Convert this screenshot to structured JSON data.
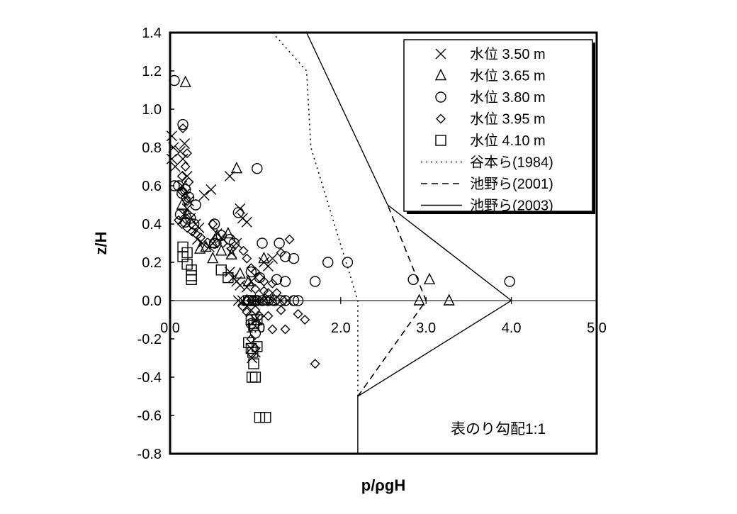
{
  "chart_data": {
    "type": "scatter",
    "title": "",
    "xlabel": "p/ρgH",
    "ylabel": "z/H",
    "xlim": [
      0,
      5
    ],
    "ylim": [
      -0.8,
      1.4
    ],
    "x_ticks": [
      "0.0",
      "1.0",
      "2.0",
      "3.0",
      "4.0",
      "5.0"
    ],
    "y_ticks": [
      "1.4",
      "1.2",
      "1.0",
      "0.8",
      "0.6",
      "0.4",
      "0.2",
      "0.0",
      "-0.2",
      "-0.4",
      "-0.6",
      "-0.8"
    ],
    "grid": false,
    "legend_position": "top-right",
    "annotation": "表のり勾配1:1",
    "series": [
      {
        "name": "水位 3.50 m",
        "marker": "x",
        "points": [
          [
            0.02,
            0.86
          ],
          [
            0.04,
            0.8
          ],
          [
            0.02,
            0.74
          ],
          [
            0.06,
            0.7
          ],
          [
            0.12,
            0.78
          ],
          [
            0.17,
            0.82
          ],
          [
            0.15,
            0.74
          ],
          [
            0.2,
            0.65
          ],
          [
            0.14,
            0.6
          ],
          [
            0.18,
            0.56
          ],
          [
            0.22,
            0.52
          ],
          [
            0.2,
            0.48
          ],
          [
            0.16,
            0.45
          ],
          [
            0.24,
            0.43
          ],
          [
            0.3,
            0.4
          ],
          [
            0.34,
            0.38
          ],
          [
            0.4,
            0.55
          ],
          [
            0.48,
            0.58
          ],
          [
            0.32,
            0.32
          ],
          [
            0.38,
            0.3
          ],
          [
            0.46,
            0.28
          ],
          [
            0.5,
            0.3
          ],
          [
            0.55,
            0.35
          ],
          [
            0.6,
            0.33
          ],
          [
            0.7,
            0.65
          ],
          [
            0.82,
            0.48
          ],
          [
            0.85,
            0.43
          ],
          [
            0.9,
            0.41
          ],
          [
            0.78,
            0.3
          ],
          [
            0.72,
            0.25
          ],
          [
            0.7,
            0.15
          ],
          [
            0.74,
            0.12
          ],
          [
            0.78,
            0.1
          ],
          [
            0.82,
            0.08
          ],
          [
            0.9,
            0.07
          ],
          [
            0.95,
            0.1
          ],
          [
            1.1,
            0.2
          ],
          [
            1.15,
            0.18
          ],
          [
            1.2,
            0.22
          ],
          [
            0.8,
            0.0
          ],
          [
            0.85,
            0.0
          ],
          [
            0.95,
            0.0
          ],
          [
            1.05,
            0.0
          ],
          [
            1.2,
            0.0
          ],
          [
            1.3,
            0.0
          ],
          [
            1.38,
            0.0
          ],
          [
            0.95,
            -0.05
          ],
          [
            1.0,
            -0.1
          ],
          [
            0.95,
            -0.25
          ],
          [
            1.0,
            -0.27
          ],
          [
            0.96,
            -0.3
          ]
        ]
      },
      {
        "name": "水位 3.65 m",
        "marker": "triangle",
        "points": [
          [
            0.18,
            1.14
          ],
          [
            0.78,
            0.69
          ],
          [
            0.68,
            0.35
          ],
          [
            0.55,
            0.34
          ],
          [
            0.5,
            0.3
          ],
          [
            0.42,
            0.28
          ],
          [
            0.35,
            0.27
          ],
          [
            0.6,
            0.26
          ],
          [
            0.72,
            0.24
          ],
          [
            0.5,
            0.22
          ],
          [
            0.82,
            0.14
          ],
          [
            0.92,
            0.1
          ],
          [
            0.14,
            0.5
          ],
          [
            0.2,
            0.45
          ],
          [
            1.1,
            0.22
          ],
          [
            0.9,
            0.0
          ],
          [
            1.0,
            0.0
          ],
          [
            1.1,
            0.0
          ],
          [
            1.2,
            0.0
          ],
          [
            2.92,
            0.0
          ],
          [
            3.27,
            0.0
          ],
          [
            3.04,
            0.11
          ]
        ]
      },
      {
        "name": "水位 3.80 m",
        "marker": "circle",
        "points": [
          [
            0.05,
            1.15
          ],
          [
            0.15,
            0.92
          ],
          [
            0.1,
            0.6
          ],
          [
            0.05,
            0.6
          ],
          [
            0.14,
            0.56
          ],
          [
            0.18,
            0.58
          ],
          [
            0.22,
            0.54
          ],
          [
            0.3,
            0.5
          ],
          [
            0.12,
            0.45
          ],
          [
            0.24,
            0.43
          ],
          [
            0.18,
            0.41
          ],
          [
            0.28,
            0.4
          ],
          [
            0.52,
            0.4
          ],
          [
            0.6,
            0.34
          ],
          [
            0.7,
            0.32
          ],
          [
            0.75,
            0.3
          ],
          [
            0.52,
            0.3
          ],
          [
            0.8,
            0.46
          ],
          [
            1.02,
            0.69
          ],
          [
            1.08,
            0.3
          ],
          [
            1.28,
            0.3
          ],
          [
            1.35,
            0.23
          ],
          [
            1.45,
            0.22
          ],
          [
            1.85,
            0.2
          ],
          [
            2.08,
            0.2
          ],
          [
            0.95,
            0.15
          ],
          [
            1.05,
            0.12
          ],
          [
            1.25,
            0.11
          ],
          [
            1.35,
            0.1
          ],
          [
            1.7,
            0.1
          ],
          [
            2.85,
            0.11
          ],
          [
            3.98,
            0.1
          ],
          [
            0.92,
            0.0
          ],
          [
            1.0,
            0.0
          ],
          [
            1.08,
            0.0
          ],
          [
            1.15,
            0.0
          ],
          [
            1.22,
            0.0
          ],
          [
            1.3,
            0.0
          ],
          [
            1.35,
            0.0
          ],
          [
            1.45,
            0.0
          ],
          [
            1.5,
            0.0
          ],
          [
            0.95,
            -0.12
          ],
          [
            1.0,
            -0.17
          ]
        ]
      },
      {
        "name": "水位 3.95 m",
        "marker": "diamond",
        "points": [
          [
            0.15,
            0.9
          ],
          [
            0.2,
            0.77
          ],
          [
            0.18,
            0.7
          ],
          [
            0.14,
            0.65
          ],
          [
            0.22,
            0.62
          ],
          [
            0.14,
            0.57
          ],
          [
            0.2,
            0.52
          ],
          [
            0.1,
            0.42
          ],
          [
            0.14,
            0.4
          ],
          [
            0.2,
            0.38
          ],
          [
            0.26,
            0.36
          ],
          [
            0.3,
            0.35
          ],
          [
            0.36,
            0.33
          ],
          [
            0.5,
            0.4
          ],
          [
            0.55,
            0.3
          ],
          [
            0.62,
            0.3
          ],
          [
            0.72,
            0.27
          ],
          [
            0.86,
            0.26
          ],
          [
            0.9,
            0.22
          ],
          [
            0.95,
            0.17
          ],
          [
            1.0,
            0.15
          ],
          [
            1.05,
            0.12
          ],
          [
            1.1,
            0.1
          ],
          [
            1.2,
            0.09
          ],
          [
            1.0,
            0.06
          ],
          [
            1.1,
            0.05
          ],
          [
            1.15,
            0.04
          ],
          [
            1.25,
            0.04
          ],
          [
            1.4,
            0.32
          ],
          [
            1.3,
            0.25
          ],
          [
            0.9,
            0.0
          ],
          [
            0.95,
            0.0
          ],
          [
            1.0,
            0.0
          ],
          [
            1.05,
            0.0
          ],
          [
            1.15,
            0.0
          ],
          [
            0.85,
            -0.03
          ],
          [
            0.9,
            -0.06
          ],
          [
            1.0,
            -0.05
          ],
          [
            1.05,
            -0.08
          ],
          [
            1.15,
            -0.08
          ],
          [
            1.3,
            -0.05
          ],
          [
            1.5,
            -0.07
          ],
          [
            1.58,
            -0.1
          ],
          [
            1.02,
            -0.12
          ],
          [
            1.2,
            -0.15
          ],
          [
            1.35,
            -0.15
          ],
          [
            0.95,
            -0.2
          ],
          [
            1.0,
            -0.25
          ],
          [
            1.7,
            -0.33
          ]
        ]
      },
      {
        "name": "水位 4.10 m",
        "marker": "square",
        "points": [
          [
            0.15,
            0.28
          ],
          [
            0.2,
            0.25
          ],
          [
            0.15,
            0.23
          ],
          [
            0.2,
            0.19
          ],
          [
            0.25,
            0.16
          ],
          [
            0.25,
            0.13
          ],
          [
            0.25,
            0.11
          ],
          [
            0.6,
            0.16
          ],
          [
            0.68,
            0.12
          ],
          [
            0.92,
            0.0
          ],
          [
            0.98,
            0.0
          ],
          [
            0.95,
            -0.1
          ],
          [
            0.98,
            -0.13
          ],
          [
            1.02,
            -0.1
          ],
          [
            0.92,
            -0.22
          ],
          [
            0.95,
            -0.25
          ],
          [
            0.97,
            -0.27
          ],
          [
            1.02,
            -0.24
          ],
          [
            0.98,
            -0.33
          ],
          [
            0.96,
            -0.4
          ],
          [
            1.0,
            -0.4
          ],
          [
            1.05,
            -0.61
          ],
          [
            1.12,
            -0.61
          ]
        ]
      },
      {
        "name": "谷本ら(1984)",
        "style": "dotted",
        "points": [
          [
            1.2,
            1.4
          ],
          [
            1.6,
            1.2
          ],
          [
            1.65,
            0.8
          ],
          [
            2.2,
            0.0
          ],
          [
            2.2,
            -0.5
          ]
        ]
      },
      {
        "name": "池野ら(2001)",
        "style": "dashed",
        "points": [
          [
            2.2,
            -0.5
          ],
          [
            3.0,
            0.0
          ],
          [
            2.55,
            0.5
          ]
        ]
      },
      {
        "name": "池野ら(2003)",
        "style": "solid",
        "points": [
          [
            1.6,
            1.4
          ],
          [
            2.55,
            0.5
          ],
          [
            4.0,
            0.0
          ],
          [
            2.2,
            -0.5
          ],
          [
            2.2,
            -0.8
          ]
        ]
      }
    ]
  }
}
